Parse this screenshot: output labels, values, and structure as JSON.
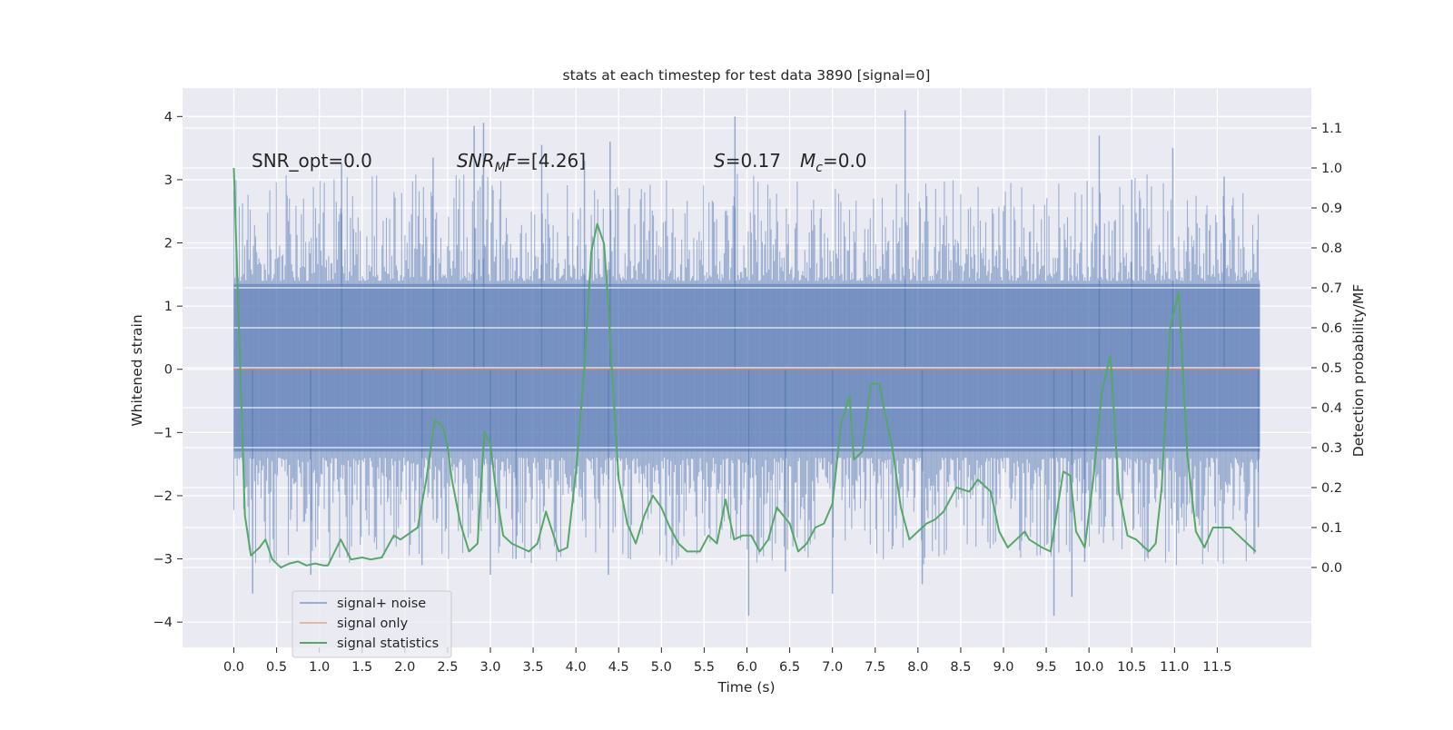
{
  "chart_data": {
    "type": "line",
    "title": "stats at each timestep for test data 3890 [signal=0]",
    "xlabel": "Time (s)",
    "ylabel_left": "Whitened strain",
    "ylabel_right": "Detection probability/MF",
    "xlim": [
      -0.6,
      12.6
    ],
    "ylim_left": [
      -4.4,
      4.45
    ],
    "ylim_right": [
      -0.2,
      1.2
    ],
    "x_ticks": [
      0.0,
      0.5,
      1.0,
      1.5,
      2.0,
      2.5,
      3.0,
      3.5,
      4.0,
      4.5,
      5.0,
      5.5,
      6.0,
      6.5,
      7.0,
      7.5,
      8.0,
      8.5,
      9.0,
      9.5,
      10.0,
      10.5,
      11.0,
      11.5
    ],
    "x_tick_labels": [
      "0.0",
      "0.5",
      "1.0",
      "1.5",
      "2.0",
      "2.5",
      "3.0",
      "3.5",
      "4.0",
      "4.5",
      "5.0",
      "5.5",
      "6.0",
      "6.5",
      "7.0",
      "7.5",
      "8.0",
      "8.5",
      "9.0",
      "9.5",
      "10.0",
      "10.5",
      "11.0",
      "11.5"
    ],
    "y_left_ticks": [
      -4,
      -3,
      -2,
      -1,
      0,
      1,
      2,
      3,
      4
    ],
    "y_left_tick_labels": [
      "−4",
      "−3",
      "−2",
      "−1",
      "0",
      "1",
      "2",
      "3",
      "4"
    ],
    "y_right_ticks": [
      0.0,
      0.1,
      0.2,
      0.3,
      0.4,
      0.5,
      0.6,
      0.7,
      0.8,
      0.9,
      1.0,
      1.1
    ],
    "y_right_tick_labels": [
      "0.0",
      "0.1",
      "0.2",
      "0.3",
      "0.4",
      "0.5",
      "0.6",
      "0.7",
      "0.8",
      "0.9",
      "1.0",
      "1.1"
    ],
    "grid": true,
    "legend": {
      "placement": "lower-left",
      "entries": [
        "signal+ noise",
        "signal only",
        "signal statistics"
      ]
    },
    "annotations": {
      "snr_opt": "SNR_opt=0.0",
      "snr_mf_sym": "SNR",
      "snr_mf_sub": "M",
      "snr_mf_tail": "F",
      "snr_mf_val": "=[4.26]",
      "s_sym": "S",
      "s_val": "=0.17",
      "mc_sym": "M",
      "mc_sub": "c",
      "mc_val": "=0.0"
    },
    "colors": {
      "background": "#EAEAF2",
      "grid": "#FFFFFF",
      "signal_noise": "#4C72B0",
      "signal_only": "#DD8452",
      "signal_statistics": "#55A868"
    },
    "series": [
      {
        "name": "signal+ noise",
        "axis": "left",
        "style": "dense-noise",
        "x_range": [
          0.0,
          12.0
        ],
        "core_band": [
          -1.3,
          1.35
        ],
        "extreme_spikes": [
          {
            "x": 0.22,
            "y": -3.55
          },
          {
            "x": 0.9,
            "y": -3.25
          },
          {
            "x": 1.26,
            "y": 3.25
          },
          {
            "x": 2.2,
            "y": -3.1
          },
          {
            "x": 2.33,
            "y": 3.35
          },
          {
            "x": 2.81,
            "y": 3.85
          },
          {
            "x": 2.92,
            "y": 3.9
          },
          {
            "x": 3.0,
            "y": -3.25
          },
          {
            "x": 3.3,
            "y": -3.0
          },
          {
            "x": 3.6,
            "y": 3.55
          },
          {
            "x": 4.1,
            "y": 3.3
          },
          {
            "x": 4.38,
            "y": -3.25
          },
          {
            "x": 4.4,
            "y": 3.6
          },
          {
            "x": 5.86,
            "y": 4.0
          },
          {
            "x": 6.02,
            "y": -3.9
          },
          {
            "x": 6.45,
            "y": -3.2
          },
          {
            "x": 7.0,
            "y": -3.55
          },
          {
            "x": 7.85,
            "y": 4.1
          },
          {
            "x": 8.05,
            "y": -3.4
          },
          {
            "x": 9.59,
            "y": -3.9
          },
          {
            "x": 9.8,
            "y": -3.6
          },
          {
            "x": 9.95,
            "y": -3.05
          },
          {
            "x": 10.12,
            "y": 3.7
          },
          {
            "x": 10.5,
            "y": 3.0
          },
          {
            "x": 10.98,
            "y": 3.5
          },
          {
            "x": 11.58,
            "y": 3.05
          },
          {
            "x": 11.98,
            "y": -2.5
          }
        ]
      },
      {
        "name": "signal only",
        "axis": "left",
        "x": [
          0.0,
          12.0
        ],
        "y": [
          0.0,
          0.0
        ]
      },
      {
        "name": "signal statistics",
        "axis": "right",
        "x": [
          0.0,
          0.13,
          0.2,
          0.3,
          0.37,
          0.45,
          0.55,
          0.65,
          0.75,
          0.85,
          0.95,
          1.05,
          1.1,
          1.25,
          1.37,
          1.5,
          1.6,
          1.73,
          1.87,
          1.95,
          2.05,
          2.15,
          2.25,
          2.35,
          2.45,
          2.5,
          2.55,
          2.65,
          2.75,
          2.85,
          2.93,
          3.0,
          3.06,
          3.15,
          3.25,
          3.35,
          3.45,
          3.55,
          3.65,
          3.8,
          3.9,
          4.0,
          4.1,
          4.18,
          4.25,
          4.33,
          4.38,
          4.42,
          4.5,
          4.6,
          4.7,
          4.8,
          4.9,
          5.0,
          5.1,
          5.2,
          5.3,
          5.45,
          5.55,
          5.65,
          5.75,
          5.85,
          5.95,
          6.05,
          6.15,
          6.25,
          6.35,
          6.5,
          6.6,
          6.7,
          6.8,
          6.9,
          7.0,
          7.1,
          7.2,
          7.25,
          7.35,
          7.45,
          7.55,
          7.6,
          7.7,
          7.8,
          7.9,
          8.0,
          8.1,
          8.2,
          8.3,
          8.45,
          8.6,
          8.7,
          8.85,
          8.95,
          9.05,
          9.15,
          9.25,
          9.3,
          9.45,
          9.55,
          9.7,
          9.78,
          9.85,
          9.95,
          10.05,
          10.15,
          10.25,
          10.35,
          10.45,
          10.55,
          10.7,
          10.78,
          10.85,
          10.95,
          11.05,
          11.15,
          11.25,
          11.35,
          11.45,
          11.55,
          11.65,
          11.75,
          11.85,
          11.95
        ],
        "y": [
          1.0,
          0.13,
          0.03,
          0.05,
          0.07,
          0.02,
          0.0,
          0.01,
          0.015,
          0.005,
          0.01,
          0.005,
          0.005,
          0.07,
          0.02,
          0.025,
          0.02,
          0.025,
          0.08,
          0.07,
          0.085,
          0.1,
          0.22,
          0.37,
          0.35,
          0.3,
          0.22,
          0.11,
          0.04,
          0.06,
          0.34,
          0.31,
          0.2,
          0.08,
          0.06,
          0.05,
          0.04,
          0.06,
          0.14,
          0.04,
          0.05,
          0.24,
          0.5,
          0.79,
          0.86,
          0.81,
          0.65,
          0.5,
          0.22,
          0.11,
          0.06,
          0.13,
          0.18,
          0.15,
          0.1,
          0.06,
          0.04,
          0.04,
          0.08,
          0.06,
          0.17,
          0.07,
          0.08,
          0.08,
          0.04,
          0.07,
          0.15,
          0.11,
          0.04,
          0.06,
          0.1,
          0.11,
          0.16,
          0.36,
          0.43,
          0.27,
          0.29,
          0.46,
          0.46,
          0.4,
          0.3,
          0.15,
          0.07,
          0.09,
          0.11,
          0.12,
          0.14,
          0.2,
          0.19,
          0.22,
          0.19,
          0.09,
          0.05,
          0.07,
          0.09,
          0.07,
          0.05,
          0.04,
          0.24,
          0.23,
          0.09,
          0.05,
          0.22,
          0.44,
          0.53,
          0.19,
          0.08,
          0.07,
          0.04,
          0.06,
          0.2,
          0.6,
          0.69,
          0.28,
          0.09,
          0.05,
          0.1,
          0.1,
          0.1,
          0.08,
          0.06,
          0.04
        ]
      }
    ]
  }
}
